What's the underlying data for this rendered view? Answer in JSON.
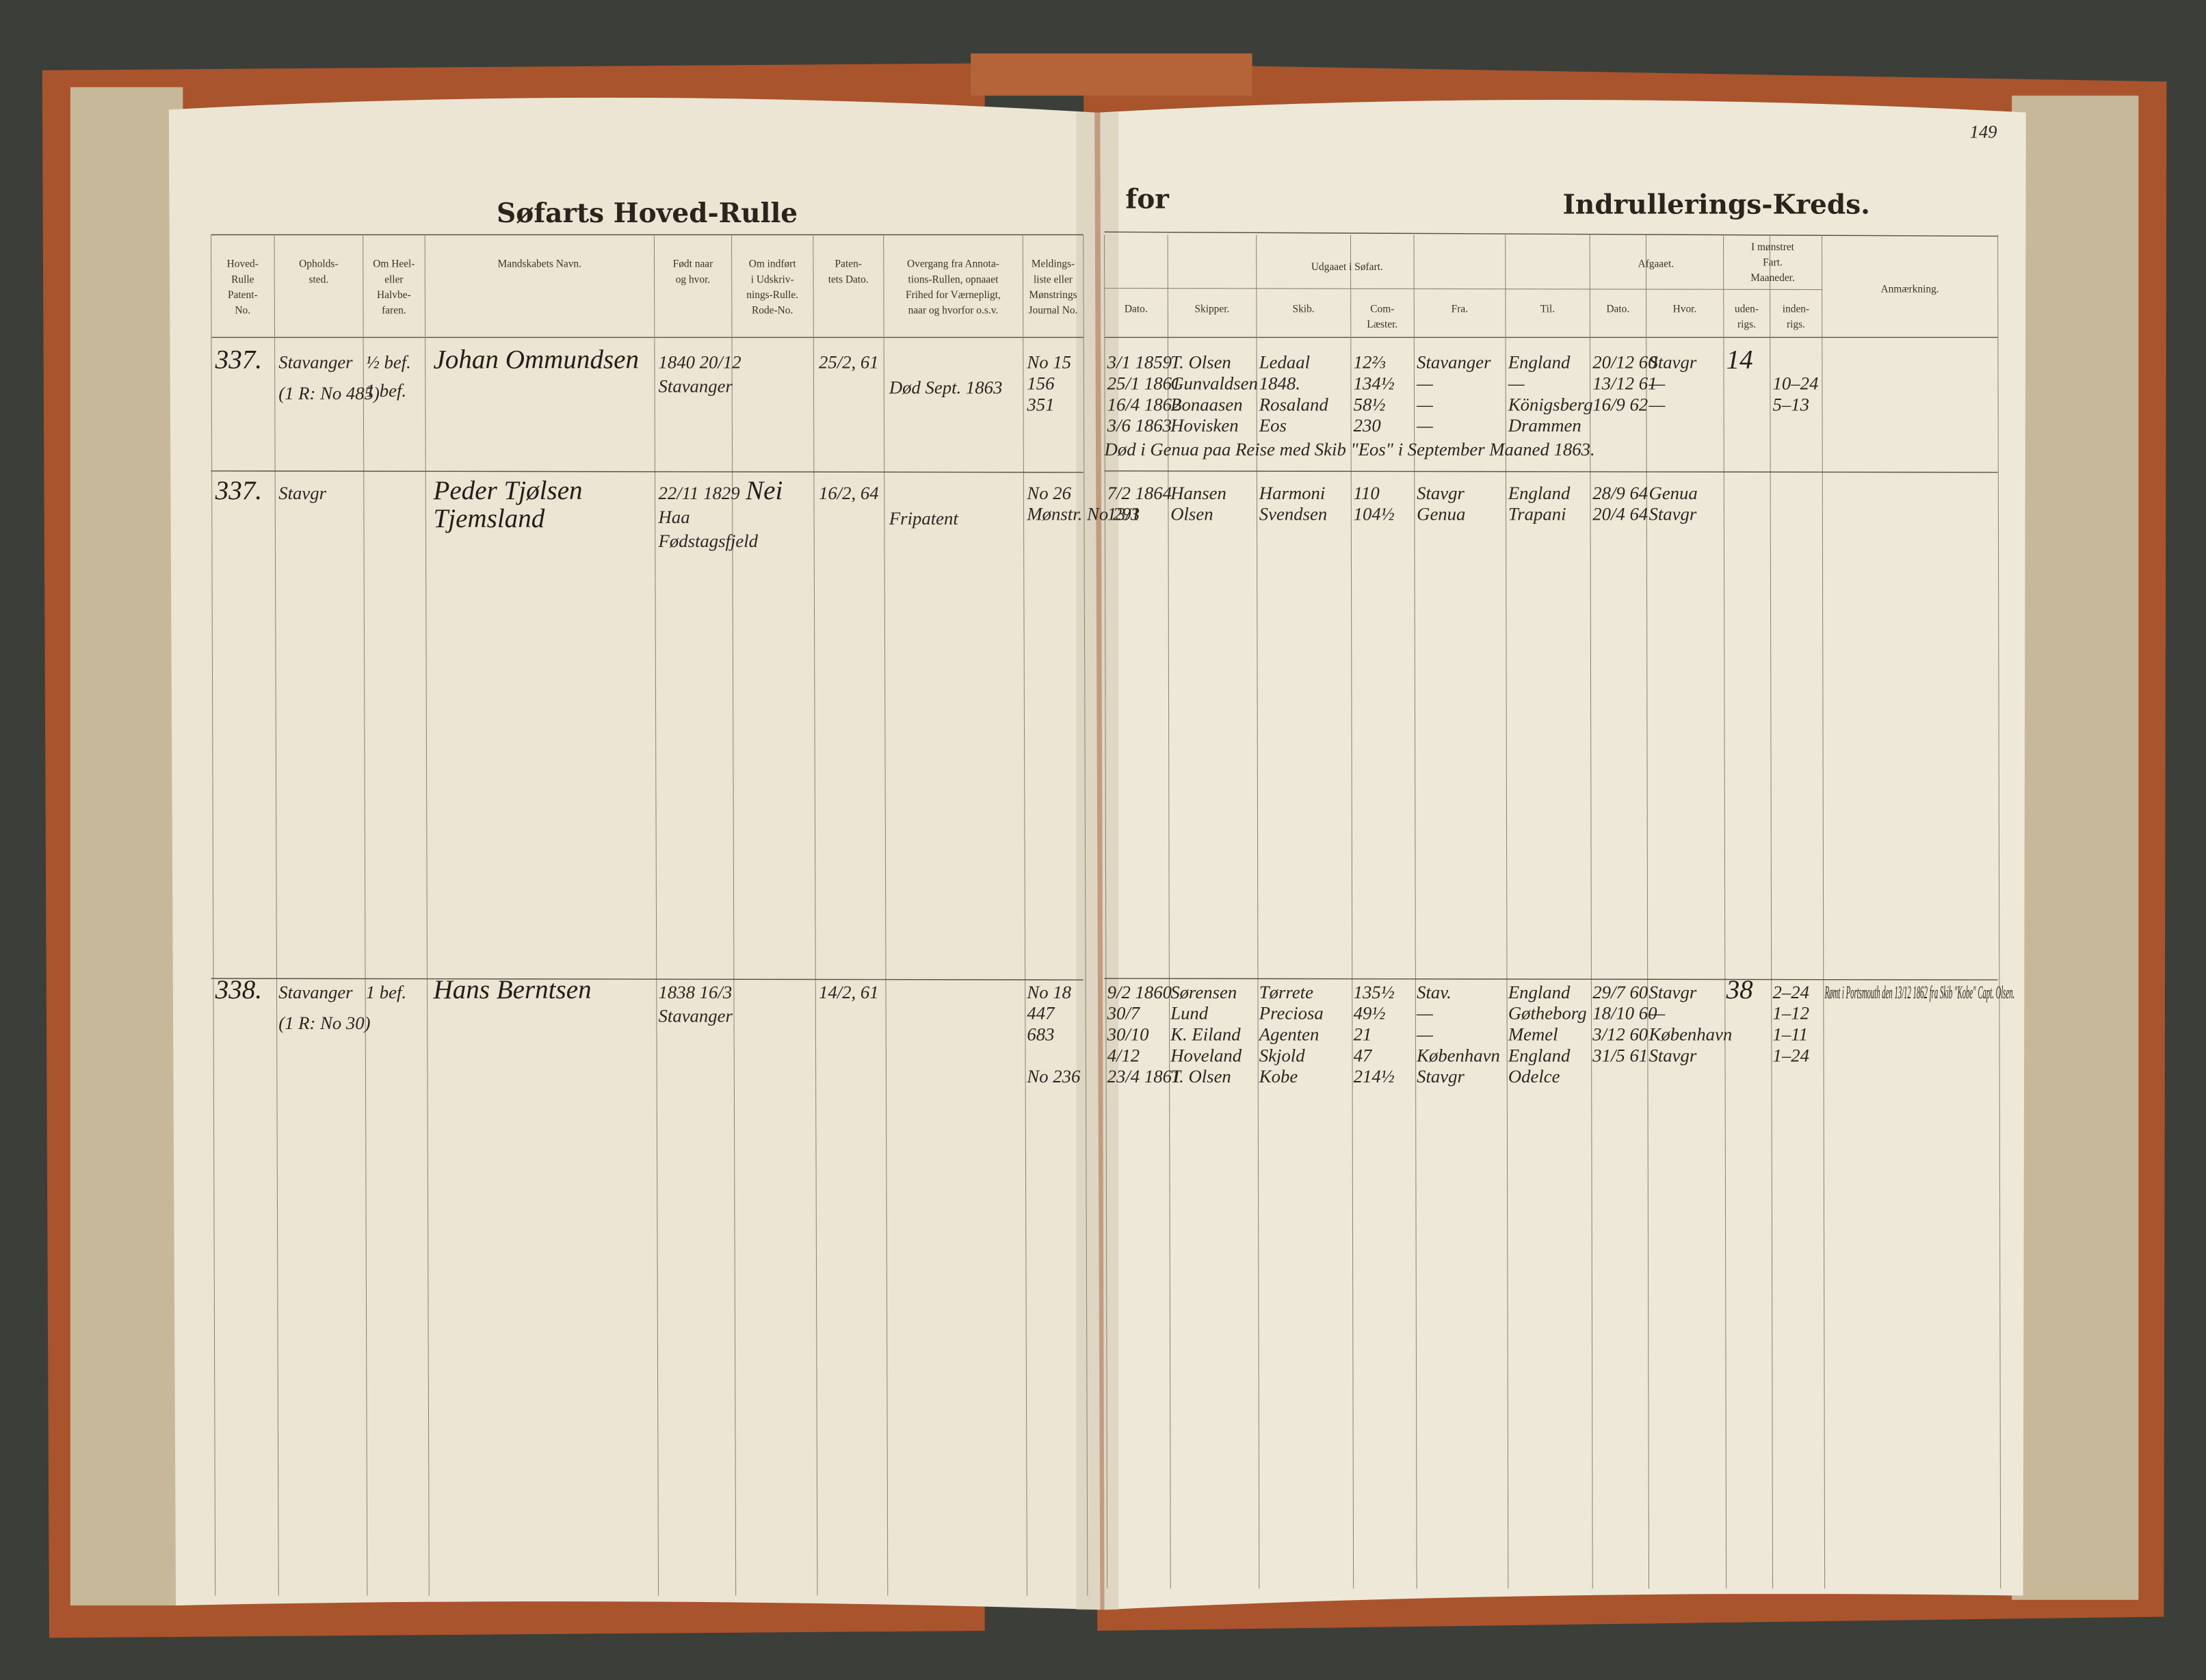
{
  "page_number": "149",
  "left_page": {
    "title": "Søfarts Hoved-Rulle",
    "columns": [
      [
        "Hoved-",
        "Rulle",
        "Patent-",
        "No."
      ],
      [
        "Opholds-",
        "sted."
      ],
      [
        "Om Heel-",
        "eller",
        "Halvbe-",
        "faren."
      ],
      [
        "Mandskabets Navn."
      ],
      [
        "Født naar",
        "og hvor."
      ],
      [
        "Om indført",
        "i Udskriv-",
        "nings-Rulle.",
        "Rode-No."
      ],
      [
        "Paten-",
        "tets Dato."
      ],
      [
        "Overgang fra Annota-",
        "tions-Rullen, opnaaet",
        "Frihed for Værnepligt,",
        "naar og hvorfor o.s.v."
      ],
      [
        "Meldings-",
        "liste eller",
        "Mønstrings",
        "Journal No."
      ]
    ]
  },
  "right_page": {
    "title_prefix": "for",
    "title": "Indrullerings-Kreds.",
    "group_headers": [
      "Udgaaet i Søfart.",
      "Afgaaet.",
      [
        "I mønstret",
        "Fart.",
        "Maaneder."
      ]
    ],
    "columns": [
      [
        "Dato."
      ],
      [
        "Skipper."
      ],
      [
        "Skib."
      ],
      [
        "Com-",
        "Læster."
      ],
      [
        "Fra."
      ],
      [
        "Til."
      ],
      [
        "Dato."
      ],
      [
        "Hvor."
      ],
      [
        "uden-",
        "rigs."
      ],
      [
        "inden-",
        "rigs."
      ],
      [
        "Anmærkning."
      ]
    ]
  },
  "entries": [
    {
      "patent_no": "337.",
      "residence": [
        "Stavanger",
        "(1 R: No 485)"
      ],
      "rating": [
        "½ bef.",
        "1 bef."
      ],
      "name": [
        "Johan Ommundsen"
      ],
      "born": [
        "1840 20/12",
        "Stavanger"
      ],
      "rode": "",
      "patent_date": "25/2, 61",
      "annotation": "Død Sept. 1863",
      "melding": [
        "No 15",
        "156",
        "351"
      ],
      "voyages": [
        [
          "3/1 1859",
          "T. Olsen",
          "Ledaal",
          "12⅔",
          "Stavanger",
          "England",
          "20/12 60",
          "Stavgr",
          "14",
          "",
          ""
        ],
        [
          "25/1 1861",
          "Gunvaldsen",
          "1848.",
          "134½",
          "—",
          "—",
          "13/12 61",
          "—",
          "",
          "10–24",
          ""
        ],
        [
          "16/4 1862",
          "Bonaasen",
          "Rosaland",
          "58½",
          "—",
          "Königsberg",
          "16/9 62",
          "—",
          "",
          "5–13",
          ""
        ],
        [
          "3/6 1863",
          "Hovisken",
          "Eos",
          "230",
          "—",
          "Drammen",
          "",
          "",
          "",
          "",
          ""
        ]
      ],
      "note": "Død i Genua paa Reise med Skib \"Eos\" i September Maaned 1863.",
      "remark": ""
    },
    {
      "patent_no": "337.",
      "residence": [
        "Stavgr"
      ],
      "rating": [],
      "name": [
        "Peder Tjølsen",
        "Tjemsland"
      ],
      "born": [
        "22/11 1829",
        "Haa",
        "Fødstagsfjeld"
      ],
      "rode": "Nei",
      "patent_date": "16/2, 64",
      "annotation": "Fripatent",
      "melding": [
        "No 26",
        "Mønstr. No 291"
      ],
      "voyages": [
        [
          "7/2 1864",
          "Hansen",
          "Harmoni",
          "110",
          "Stavgr",
          "England",
          "28/9 64",
          "Genua",
          "",
          "",
          ""
        ],
        [
          "13/3",
          "Olsen",
          "Svendsen",
          "104½",
          "Genua",
          "Trapani",
          "20/4 64",
          "Stavgr",
          "",
          "",
          ""
        ]
      ],
      "note": "",
      "remark": ""
    },
    {
      "patent_no": "338.",
      "residence": [
        "Stavanger",
        "(1 R: No 30)"
      ],
      "rating": [
        "1 bef."
      ],
      "name": [
        "Hans Berntsen"
      ],
      "born": [
        "1838 16/3",
        "Stavanger"
      ],
      "rode": "",
      "patent_date": "14/2, 61",
      "annotation": "",
      "melding": [
        "No 18",
        "447",
        "683",
        "",
        "No 236"
      ],
      "voyages": [
        [
          "9/2 1860",
          "Sørensen",
          "Tørrete",
          "135½",
          "Stav.",
          "England",
          "29/7 60",
          "Stavgr",
          "38",
          "2–24",
          ""
        ],
        [
          "30/7",
          "Lund",
          "Preciosa",
          "49½",
          "—",
          "Gøtheborg",
          "18/10 60",
          "—",
          "",
          "1–12",
          ""
        ],
        [
          "30/10",
          "K. Eiland",
          "Agenten",
          "21",
          "—",
          "Memel",
          "3/12 60",
          "København",
          "",
          "1–11",
          ""
        ],
        [
          "4/12",
          "Hoveland",
          "Skjold",
          "47",
          "København",
          "England",
          "31/5 61",
          "Stavgr",
          "",
          "1–24",
          ""
        ],
        [
          "23/4 1861",
          "T. Olsen",
          "Kobe",
          "214½",
          "Stavgr",
          "Odelce",
          "",
          "",
          "",
          "",
          ""
        ]
      ],
      "note": "",
      "remark": "Rømt i Portsmouth den 13/12 1862 fra Skib \"Kobe\" Capt. Olsen."
    }
  ]
}
